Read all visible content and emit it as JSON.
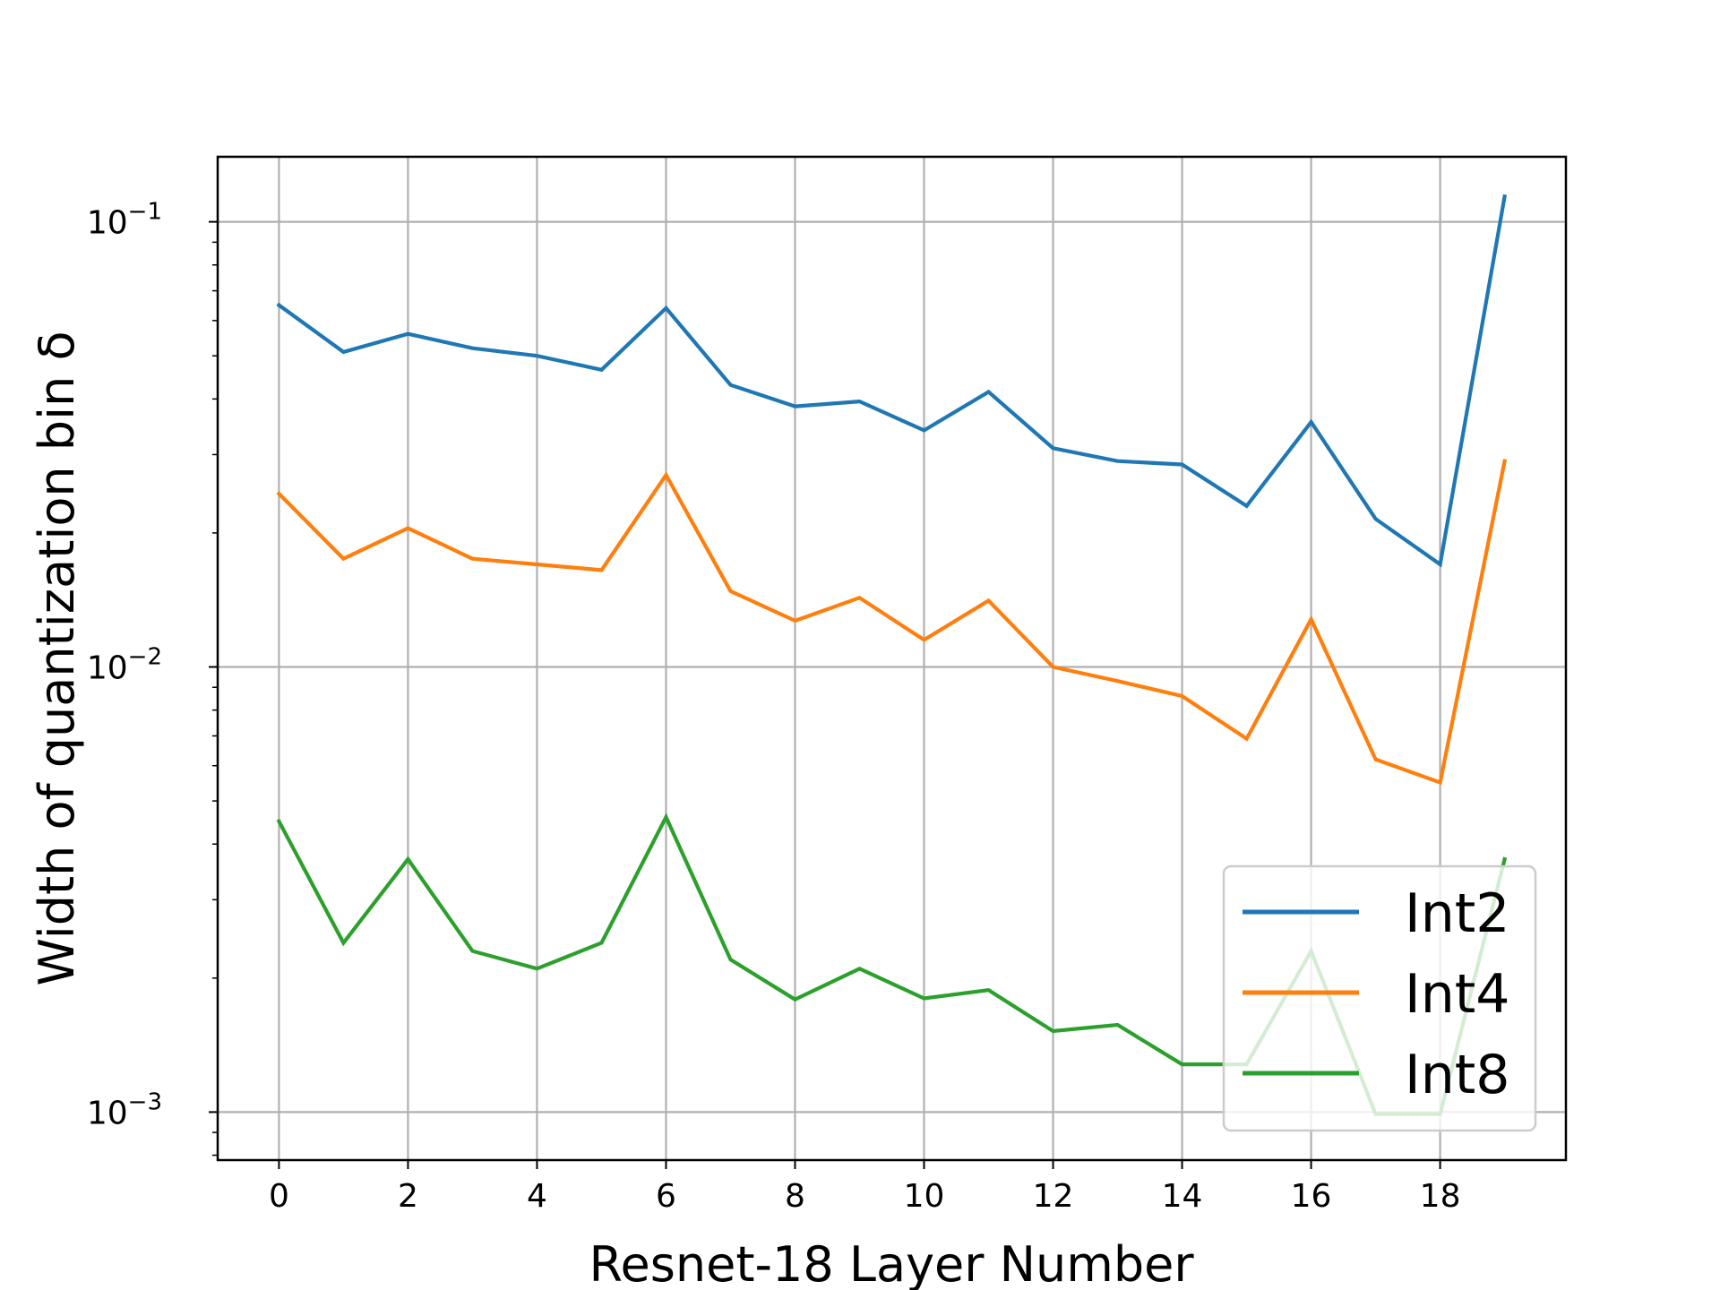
{
  "chart_data": {
    "type": "line",
    "title": "",
    "xlabel": "Resnet-18 Layer Number",
    "ylabel": "Width of quantization bin δ",
    "xscale": "linear",
    "yscale": "log",
    "xlim": [
      -0.95,
      19.95
    ],
    "ylim": [
      0.00078,
      0.14
    ],
    "x_ticks": [
      0,
      2,
      4,
      6,
      8,
      10,
      12,
      14,
      16,
      18
    ],
    "x_tick_labels": [
      "0",
      "2",
      "4",
      "6",
      "8",
      "10",
      "12",
      "14",
      "16",
      "18"
    ],
    "y_ticks": [
      {
        "value": 0.1,
        "base": "10",
        "exp": "−1"
      },
      {
        "value": 0.01,
        "base": "10",
        "exp": "−2"
      },
      {
        "value": 0.001,
        "base": "10",
        "exp": "−3"
      }
    ],
    "grid": true,
    "legend_position": "lower-right",
    "x": [
      0,
      1,
      2,
      3,
      4,
      5,
      6,
      7,
      8,
      9,
      10,
      11,
      12,
      13,
      14,
      15,
      16,
      17,
      18,
      19
    ],
    "series": [
      {
        "name": "Int2",
        "color": "#1f77b4",
        "values": [
          0.065,
          0.051,
          0.056,
          0.052,
          0.05,
          0.0465,
          0.064,
          0.043,
          0.0385,
          0.0395,
          0.034,
          0.0415,
          0.031,
          0.029,
          0.0285,
          0.023,
          0.0355,
          0.0215,
          0.017,
          0.114
        ]
      },
      {
        "name": "Int4",
        "color": "#ff7f0e",
        "values": [
          0.0245,
          0.0175,
          0.0205,
          0.0175,
          0.017,
          0.0165,
          0.027,
          0.0148,
          0.0127,
          0.0143,
          0.0115,
          0.0141,
          0.01,
          0.0093,
          0.0086,
          0.0069,
          0.0128,
          0.0062,
          0.0055,
          0.029
        ]
      },
      {
        "name": "Int8",
        "color": "#2ca02c",
        "values": [
          0.0045,
          0.0024,
          0.0037,
          0.0023,
          0.0021,
          0.0024,
          0.0046,
          0.0022,
          0.00179,
          0.0021,
          0.0018,
          0.00188,
          0.00152,
          0.00157,
          0.00128,
          0.00128,
          0.0023,
          0.00099,
          0.00099,
          0.0037
        ]
      }
    ]
  }
}
